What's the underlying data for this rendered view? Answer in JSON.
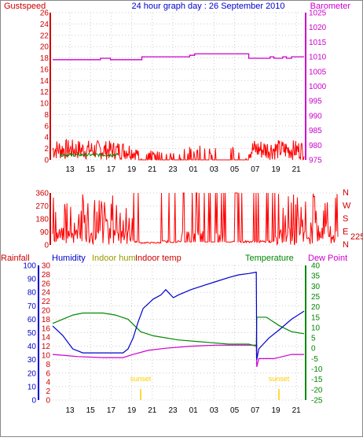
{
  "header": {
    "left_label": "Gustspeed",
    "title": "24 hour graph day : 26 September 2010",
    "right_label": "Barometer"
  },
  "colors": {
    "gust": "#ff0000",
    "barometer": "#cc00cc",
    "humidity": "#0000cc",
    "indoor_hum": "#999900",
    "indoor_temp": "#cc0000",
    "temperature": "#008800",
    "dew_point": "#cc00cc",
    "rainfall": "#cc0000",
    "wind": "#ff0000",
    "sunset": "#ffcc00",
    "grid": "#cccccc",
    "frame": "#000000"
  },
  "chart_data": [
    {
      "type": "line",
      "name": "gust-barometer",
      "x_ticks": [
        "13",
        "15",
        "17",
        "19",
        "21",
        "23",
        "01",
        "03",
        "05",
        "07",
        "19",
        "21"
      ],
      "left_axis": {
        "label": "Gustspeed",
        "range": [
          0,
          26
        ],
        "ticks": [
          0,
          2,
          4,
          6,
          8,
          10,
          12,
          14,
          16,
          18,
          20,
          22,
          24,
          26
        ]
      },
      "right_axis": {
        "label": "Barometer",
        "range": [
          975,
          1025
        ],
        "ticks": [
          975,
          980,
          985,
          990,
          995,
          1000,
          1005,
          1010,
          1015,
          1020,
          1025
        ]
      },
      "series": [
        {
          "name": "Barometer",
          "axis": "right",
          "segments": [
            [
              0,
              1009
            ],
            [
              0.19,
              1009
            ],
            [
              0.19,
              1009.5
            ],
            [
              0.23,
              1009.5
            ],
            [
              0.23,
              1009
            ],
            [
              0.355,
              1009
            ],
            [
              0.355,
              1010
            ],
            [
              0.545,
              1010
            ],
            [
              0.545,
              1010.5
            ],
            [
              0.565,
              1010.5
            ],
            [
              0.565,
              1011
            ],
            [
              0.78,
              1011
            ],
            [
              0.78,
              1009.5
            ],
            [
              0.865,
              1009.5
            ],
            [
              0.865,
              1010
            ],
            [
              0.88,
              1010
            ],
            [
              0.88,
              1009.5
            ],
            [
              0.915,
              1009.5
            ],
            [
              0.915,
              1010
            ],
            [
              0.93,
              1010
            ],
            [
              0.93,
              1009.5
            ],
            [
              0.95,
              1009.5
            ],
            [
              0.95,
              1010
            ],
            [
              1,
              1010
            ]
          ]
        },
        {
          "name": "Gustspeed",
          "axis": "left",
          "envelope": [
            [
              0,
              2.5
            ],
            [
              0.3,
              2.2
            ],
            [
              0.33,
              1.6
            ],
            [
              0.37,
              1.2
            ],
            [
              0.5,
              1.4
            ],
            [
              0.6,
              1.8
            ],
            [
              0.73,
              1.5
            ],
            [
              0.76,
              1.4
            ],
            [
              0.8,
              2.5
            ],
            [
              1,
              2.3
            ]
          ]
        }
      ]
    },
    {
      "type": "line",
      "name": "wind-direction",
      "left_axis": {
        "range": [
          0,
          360
        ],
        "ticks": [
          0,
          90,
          180,
          270,
          360
        ]
      },
      "right_labels": [
        "N",
        "W",
        "S",
        "E",
        "N"
      ],
      "current_direction": "225"
    },
    {
      "type": "line",
      "name": "temperature-humidity",
      "x_ticks": [
        "13",
        "15",
        "17",
        "19",
        "21",
        "23",
        "01",
        "03",
        "05",
        "07",
        "19",
        "21"
      ],
      "legend": [
        "Rainfall",
        "Humidity",
        "Indoor hum",
        "Indoor temp",
        "Temperature",
        "Dew Point"
      ],
      "rainfall_axis": {
        "range": [
          0,
          30
        ],
        "ticks": [
          0,
          2,
          4,
          6,
          8,
          10,
          12,
          14,
          16,
          18,
          20,
          22,
          24,
          26,
          28,
          30
        ]
      },
      "humidity_axis": {
        "range": [
          0,
          100
        ],
        "ticks": [
          0,
          10,
          20,
          30,
          40,
          50,
          60,
          70,
          80,
          90,
          100
        ]
      },
      "temperature_axis": {
        "range": [
          -25,
          40
        ],
        "ticks": [
          -25,
          -20,
          -15,
          -10,
          -5,
          0,
          5,
          10,
          15,
          20,
          25,
          30,
          35,
          40
        ]
      },
      "series": [
        {
          "name": "Humidity",
          "axis": "humidity",
          "points": [
            [
              0,
              55
            ],
            [
              0.04,
              48
            ],
            [
              0.08,
              38
            ],
            [
              0.12,
              35
            ],
            [
              0.2,
              35
            ],
            [
              0.28,
              35
            ],
            [
              0.3,
              38
            ],
            [
              0.32,
              46
            ],
            [
              0.34,
              58
            ],
            [
              0.36,
              68
            ],
            [
              0.4,
              75
            ],
            [
              0.43,
              78
            ],
            [
              0.45,
              82
            ],
            [
              0.48,
              76
            ],
            [
              0.5,
              78
            ],
            [
              0.55,
              82
            ],
            [
              0.6,
              85
            ],
            [
              0.65,
              88
            ],
            [
              0.7,
              91
            ],
            [
              0.74,
              93
            ],
            [
              0.78,
              94
            ],
            [
              0.81,
              95
            ],
            [
              0.812,
              30
            ],
            [
              0.82,
              38
            ],
            [
              0.86,
              46
            ],
            [
              0.9,
              52
            ],
            [
              0.95,
              60
            ],
            [
              1,
              66
            ]
          ]
        },
        {
          "name": "Temperature",
          "axis": "temperature",
          "points": [
            [
              0,
              12
            ],
            [
              0.04,
              14
            ],
            [
              0.08,
              16
            ],
            [
              0.12,
              17
            ],
            [
              0.2,
              17
            ],
            [
              0.25,
              16
            ],
            [
              0.3,
              14
            ],
            [
              0.35,
              8
            ],
            [
              0.4,
              6
            ],
            [
              0.5,
              4
            ],
            [
              0.6,
              3
            ],
            [
              0.7,
              2
            ],
            [
              0.78,
              2
            ],
            [
              0.81,
              1
            ],
            [
              0.812,
              15
            ],
            [
              0.85,
              15
            ],
            [
              0.9,
              11
            ],
            [
              0.95,
              8
            ],
            [
              1,
              7
            ]
          ]
        },
        {
          "name": "Dew Point",
          "axis": "temperature",
          "points": [
            [
              0,
              -3
            ],
            [
              0.05,
              -3.5
            ],
            [
              0.1,
              -4
            ],
            [
              0.2,
              -4.5
            ],
            [
              0.28,
              -4.5
            ],
            [
              0.32,
              -3
            ],
            [
              0.38,
              -1
            ],
            [
              0.45,
              0
            ],
            [
              0.55,
              1
            ],
            [
              0.65,
              1.5
            ],
            [
              0.78,
              1.5
            ],
            [
              0.81,
              1.5
            ],
            [
              0.812,
              -9
            ],
            [
              0.82,
              -5
            ],
            [
              0.88,
              -5
            ],
            [
              0.95,
              -3
            ],
            [
              1,
              -3
            ]
          ]
        }
      ],
      "sunset_markers": [
        {
          "label": "sunset",
          "x": 0.35
        },
        {
          "label": "sunset",
          "x": 0.9
        }
      ]
    }
  ]
}
